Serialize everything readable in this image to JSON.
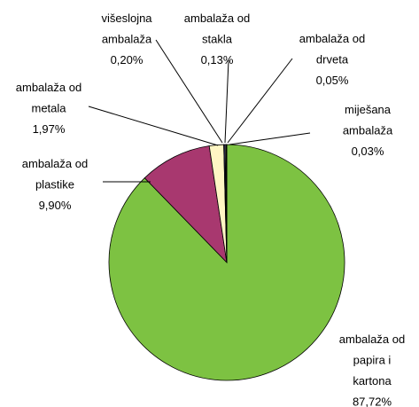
{
  "chart_data": {
    "type": "pie",
    "categories": [
      [
        "ambalaža od",
        "papira i",
        "kartona"
      ],
      [
        "ambalaža od",
        "plastike"
      ],
      [
        "ambalaža od",
        "metala"
      ],
      [
        "višeslojna",
        "ambalaža"
      ],
      [
        "ambalaža od",
        "stakla"
      ],
      [
        "ambalaža od",
        "drveta"
      ],
      [
        "miješana",
        "ambalaža"
      ]
    ],
    "values": [
      87.72,
      9.9,
      1.97,
      0.2,
      0.13,
      0.05,
      0.03
    ],
    "value_labels": [
      "87,72%",
      "9,90%",
      "1,97%",
      "0,20%",
      "0,13%",
      "0,05%",
      "0,03%"
    ],
    "colors": [
      "#7dc242",
      "#a8386f",
      "#fff6c4",
      "#2a2a55",
      "#f4f4dc",
      "#000000",
      "#5a1030"
    ]
  }
}
